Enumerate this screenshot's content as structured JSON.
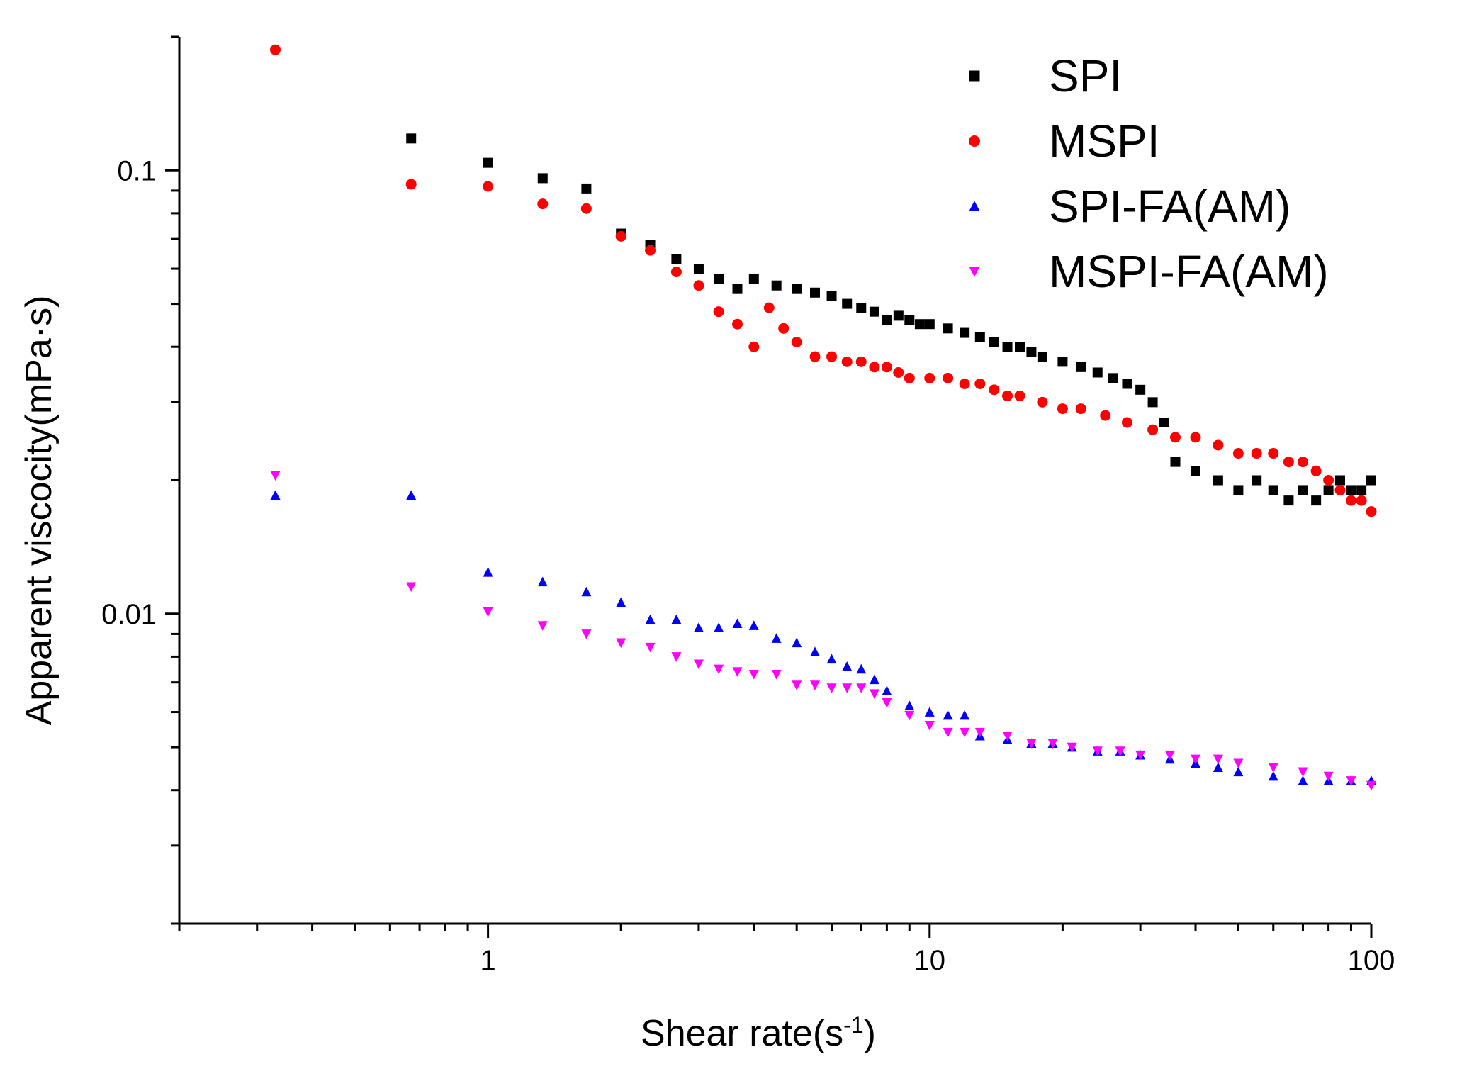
{
  "chart_data": {
    "type": "scatter",
    "xscale": "log",
    "yscale": "log",
    "xlabel": "Shear rate(s",
    "xlabel_sup": "-1",
    "xlabel_end": ")",
    "ylabel": "Apparent viscocity(mPa·s)",
    "xlim": [
      0.2,
      100
    ],
    "ylim": [
      0.002,
      0.2
    ],
    "x_ticks": [
      {
        "value": 1,
        "label": "1"
      },
      {
        "value": 10,
        "label": "10"
      },
      {
        "value": 100,
        "label": "100"
      }
    ],
    "y_ticks": [
      {
        "value": 0.01,
        "label": "0.01"
      },
      {
        "value": 0.1,
        "label": "0.1"
      }
    ],
    "legend_position": "top-right",
    "series": [
      {
        "name": "SPI",
        "marker": "square",
        "color": "#000000",
        "points": [
          [
            0.67,
            0.118
          ],
          [
            1.0,
            0.104
          ],
          [
            1.33,
            0.096
          ],
          [
            1.67,
            0.091
          ],
          [
            2.0,
            0.072
          ],
          [
            2.33,
            0.068
          ],
          [
            2.67,
            0.063
          ],
          [
            3.0,
            0.06
          ],
          [
            3.33,
            0.057
          ],
          [
            3.67,
            0.054
          ],
          [
            4.0,
            0.057
          ],
          [
            4.5,
            0.055
          ],
          [
            5.0,
            0.054
          ],
          [
            5.5,
            0.053
          ],
          [
            6.0,
            0.052
          ],
          [
            6.5,
            0.05
          ],
          [
            7.0,
            0.049
          ],
          [
            7.5,
            0.048
          ],
          [
            8.0,
            0.046
          ],
          [
            8.5,
            0.047
          ],
          [
            9.0,
            0.046
          ],
          [
            9.5,
            0.045
          ],
          [
            10.0,
            0.045
          ],
          [
            11.0,
            0.044
          ],
          [
            12.0,
            0.043
          ],
          [
            13.0,
            0.042
          ],
          [
            14.0,
            0.041
          ],
          [
            15.0,
            0.04
          ],
          [
            16.0,
            0.04
          ],
          [
            17.0,
            0.039
          ],
          [
            18.0,
            0.038
          ],
          [
            20.0,
            0.037
          ],
          [
            22.0,
            0.036
          ],
          [
            24.0,
            0.035
          ],
          [
            26.0,
            0.034
          ],
          [
            28.0,
            0.033
          ],
          [
            30.0,
            0.032
          ],
          [
            32.0,
            0.03
          ],
          [
            34.0,
            0.027
          ],
          [
            36.0,
            0.022
          ],
          [
            40.0,
            0.021
          ],
          [
            45.0,
            0.02
          ],
          [
            50.0,
            0.019
          ],
          [
            55.0,
            0.02
          ],
          [
            60.0,
            0.019
          ],
          [
            65.0,
            0.018
          ],
          [
            70.0,
            0.019
          ],
          [
            75.0,
            0.018
          ],
          [
            80.0,
            0.019
          ],
          [
            85.0,
            0.02
          ],
          [
            90.0,
            0.019
          ],
          [
            95.0,
            0.019
          ],
          [
            100.0,
            0.02
          ]
        ]
      },
      {
        "name": "MSPI",
        "marker": "circle",
        "color": "#ff0000",
        "points": [
          [
            0.33,
            0.187
          ],
          [
            0.67,
            0.093
          ],
          [
            1.0,
            0.092
          ],
          [
            1.33,
            0.084
          ],
          [
            1.67,
            0.082
          ],
          [
            2.0,
            0.071
          ],
          [
            2.33,
            0.066
          ],
          [
            2.67,
            0.059
          ],
          [
            3.0,
            0.055
          ],
          [
            3.33,
            0.048
          ],
          [
            3.67,
            0.045
          ],
          [
            4.0,
            0.04
          ],
          [
            4.33,
            0.049
          ],
          [
            4.67,
            0.044
          ],
          [
            5.0,
            0.041
          ],
          [
            5.5,
            0.038
          ],
          [
            6.0,
            0.038
          ],
          [
            6.5,
            0.037
          ],
          [
            7.0,
            0.037
          ],
          [
            7.5,
            0.036
          ],
          [
            8.0,
            0.036
          ],
          [
            8.5,
            0.035
          ],
          [
            9.0,
            0.034
          ],
          [
            10.0,
            0.034
          ],
          [
            11.0,
            0.034
          ],
          [
            12.0,
            0.033
          ],
          [
            13.0,
            0.033
          ],
          [
            14.0,
            0.032
          ],
          [
            15.0,
            0.031
          ],
          [
            16.0,
            0.031
          ],
          [
            18.0,
            0.03
          ],
          [
            20.0,
            0.029
          ],
          [
            22.0,
            0.029
          ],
          [
            25.0,
            0.028
          ],
          [
            28.0,
            0.027
          ],
          [
            32.0,
            0.026
          ],
          [
            36.0,
            0.025
          ],
          [
            40.0,
            0.025
          ],
          [
            45.0,
            0.024
          ],
          [
            50.0,
            0.023
          ],
          [
            55.0,
            0.023
          ],
          [
            60.0,
            0.023
          ],
          [
            65.0,
            0.022
          ],
          [
            70.0,
            0.022
          ],
          [
            75.0,
            0.021
          ],
          [
            80.0,
            0.02
          ],
          [
            85.0,
            0.019
          ],
          [
            90.0,
            0.018
          ],
          [
            95.0,
            0.018
          ],
          [
            100.0,
            0.017
          ]
        ]
      },
      {
        "name": "SPI-FA(AM)",
        "marker": "triangle-up",
        "color": "#0000ff",
        "points": [
          [
            0.33,
            0.0185
          ],
          [
            0.67,
            0.0185
          ],
          [
            1.0,
            0.0124
          ],
          [
            1.33,
            0.0118
          ],
          [
            1.67,
            0.0112
          ],
          [
            2.0,
            0.0106
          ],
          [
            2.33,
            0.0097
          ],
          [
            2.67,
            0.0097
          ],
          [
            3.0,
            0.0093
          ],
          [
            3.33,
            0.0093
          ],
          [
            3.67,
            0.0095
          ],
          [
            4.0,
            0.0094
          ],
          [
            4.5,
            0.0088
          ],
          [
            5.0,
            0.0086
          ],
          [
            5.5,
            0.0082
          ],
          [
            6.0,
            0.0079
          ],
          [
            6.5,
            0.0076
          ],
          [
            7.0,
            0.0075
          ],
          [
            7.5,
            0.0071
          ],
          [
            8.0,
            0.0067
          ],
          [
            9.0,
            0.0062
          ],
          [
            10.0,
            0.006
          ],
          [
            11.0,
            0.0059
          ],
          [
            12.0,
            0.0059
          ],
          [
            13.0,
            0.0053
          ],
          [
            15.0,
            0.0052
          ],
          [
            17.0,
            0.0051
          ],
          [
            19.0,
            0.0051
          ],
          [
            21.0,
            0.005
          ],
          [
            24.0,
            0.0049
          ],
          [
            27.0,
            0.0049
          ],
          [
            30.0,
            0.0048
          ],
          [
            35.0,
            0.0047
          ],
          [
            40.0,
            0.0046
          ],
          [
            45.0,
            0.0045
          ],
          [
            50.0,
            0.0044
          ],
          [
            60.0,
            0.0043
          ],
          [
            70.0,
            0.0042
          ],
          [
            80.0,
            0.0042
          ],
          [
            90.0,
            0.0042
          ],
          [
            100.0,
            0.0042
          ]
        ]
      },
      {
        "name": "MSPI-FA(AM)",
        "marker": "triangle-down",
        "color": "#ff00ff",
        "points": [
          [
            0.33,
            0.0205
          ],
          [
            0.67,
            0.0115
          ],
          [
            1.0,
            0.0101
          ],
          [
            1.33,
            0.0094
          ],
          [
            1.67,
            0.009
          ],
          [
            2.0,
            0.0086
          ],
          [
            2.33,
            0.0084
          ],
          [
            2.67,
            0.008
          ],
          [
            3.0,
            0.0077
          ],
          [
            3.33,
            0.0075
          ],
          [
            3.67,
            0.0074
          ],
          [
            4.0,
            0.0073
          ],
          [
            4.5,
            0.0073
          ],
          [
            5.0,
            0.0069
          ],
          [
            5.5,
            0.0069
          ],
          [
            6.0,
            0.0068
          ],
          [
            6.5,
            0.0068
          ],
          [
            7.0,
            0.0068
          ],
          [
            7.5,
            0.0066
          ],
          [
            8.0,
            0.0063
          ],
          [
            9.0,
            0.0059
          ],
          [
            10.0,
            0.0056
          ],
          [
            11.0,
            0.0054
          ],
          [
            12.0,
            0.0054
          ],
          [
            13.0,
            0.0054
          ],
          [
            15.0,
            0.0053
          ],
          [
            17.0,
            0.0051
          ],
          [
            19.0,
            0.0051
          ],
          [
            21.0,
            0.005
          ],
          [
            24.0,
            0.0049
          ],
          [
            27.0,
            0.0049
          ],
          [
            30.0,
            0.0048
          ],
          [
            35.0,
            0.0048
          ],
          [
            40.0,
            0.0047
          ],
          [
            45.0,
            0.0047
          ],
          [
            50.0,
            0.0046
          ],
          [
            60.0,
            0.0045
          ],
          [
            70.0,
            0.0044
          ],
          [
            80.0,
            0.0043
          ],
          [
            90.0,
            0.0042
          ],
          [
            100.0,
            0.0041
          ]
        ]
      }
    ]
  }
}
